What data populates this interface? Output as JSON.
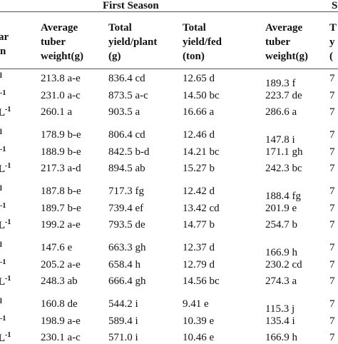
{
  "header": {
    "first_season": "First Season",
    "second_season": "S"
  },
  "table": {
    "stub_header": [
      "ar",
      "n"
    ],
    "columns": [
      [
        "Average",
        "tuber",
        "weight(g)"
      ],
      [
        "Total",
        "yield/plant",
        "(g)"
      ],
      [
        "Total",
        "yield/fed",
        "(ton)"
      ],
      [
        "Average",
        "tuber",
        "weight(g)"
      ],
      [
        "T",
        "y",
        "("
      ]
    ],
    "stubs": [
      {
        "sup": "l"
      },
      {
        "sup": "-1"
      },
      {
        "base": "L",
        "sup": "-1"
      }
    ],
    "rows": [
      [
        "213.8 a-e",
        "836.4 cd",
        "12.65 d",
        "189.3 f",
        "7"
      ],
      [
        "231.0 a-c",
        "873.5 a-c",
        "14.50 bc",
        "223.7 de",
        "7"
      ],
      [
        "260.1 a",
        "903.5 a",
        "16.66 a",
        "286.6 a",
        "7"
      ],
      [
        "178.9 b-e",
        "806.4 cd",
        "12.46 d",
        "147.8 i",
        "7"
      ],
      [
        "188.9 b-e",
        "842.5 b-d",
        "14.21 bc",
        "171.1 gh",
        "7"
      ],
      [
        "217.3 a-d",
        "894.5 ab",
        "15.27 b",
        "242.3 bc",
        "7"
      ],
      [
        "187.8 b-e",
        "717.3 fg",
        "12.42 d",
        "188.4 fg",
        "7"
      ],
      [
        "189.7 b-e",
        "739.4 ef",
        "13.42 cd",
        "201.9 e",
        "7"
      ],
      [
        "199.2 a-e",
        "793.5 de",
        "14.77 b",
        "254.7 b",
        "7"
      ],
      [
        "147.6 e",
        "663.3 gh",
        "12.37 d",
        "166.9 h",
        "7"
      ],
      [
        "205.2 a-e",
        "658.4 h",
        "12.79 d",
        "230.2 cd",
        "7"
      ],
      [
        "248.3 ab",
        "666.4 gh",
        "14.56 bc",
        "274.3 a",
        "7"
      ],
      [
        "160.8 de",
        "544.2 i",
        "9.41 e",
        "115.3 j",
        "7"
      ],
      [
        "198.9 a-e",
        "589.4 i",
        "10.39 e",
        "135.4 i",
        "7"
      ],
      [
        "230.1 a-c",
        "571.0 i",
        "10.46 e",
        "166.9 h",
        "7"
      ]
    ]
  }
}
